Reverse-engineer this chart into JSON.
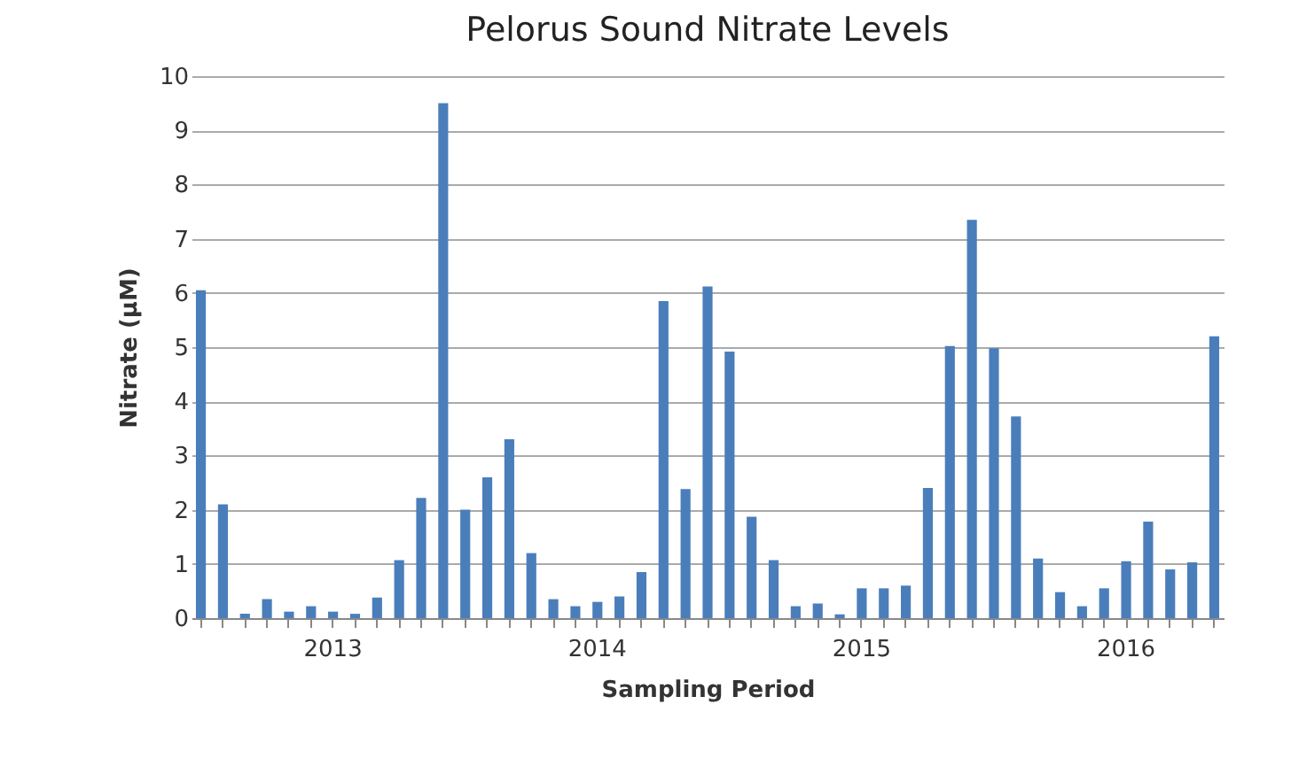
{
  "chart_data": {
    "type": "bar",
    "title": "Pelorus Sound Nitrate Levels",
    "xlabel": "Sampling Period",
    "ylabel": "Nitrate (µM)",
    "categories": [
      null,
      null,
      null,
      null,
      null,
      null,
      "2013",
      null,
      null,
      null,
      null,
      null,
      null,
      null,
      null,
      null,
      null,
      null,
      "2014",
      null,
      null,
      null,
      null,
      null,
      null,
      null,
      null,
      null,
      null,
      null,
      "2015",
      null,
      null,
      null,
      null,
      null,
      null,
      null,
      null,
      null,
      null,
      null,
      "2016",
      null,
      null,
      null,
      null
    ],
    "values": [
      6.05,
      2.1,
      0.08,
      0.35,
      0.12,
      0.22,
      0.12,
      0.08,
      0.38,
      1.07,
      2.22,
      9.5,
      2.0,
      2.6,
      3.3,
      1.2,
      0.35,
      0.22,
      0.3,
      0.4,
      0.85,
      5.85,
      2.38,
      6.12,
      4.92,
      1.87,
      1.07,
      0.22,
      0.27,
      0.07,
      0.55,
      0.55,
      0.6,
      2.4,
      5.02,
      7.35,
      4.98,
      3.72,
      1.1,
      0.48,
      0.22,
      0.55,
      1.05,
      1.78,
      0.9,
      1.03,
      5.2
    ],
    "color": "#4a7ebb",
    "ylim": [
      0,
      10
    ],
    "yticks": [
      0,
      1,
      2,
      3,
      4,
      5,
      6,
      7,
      8,
      9,
      10
    ],
    "grid": "y"
  }
}
